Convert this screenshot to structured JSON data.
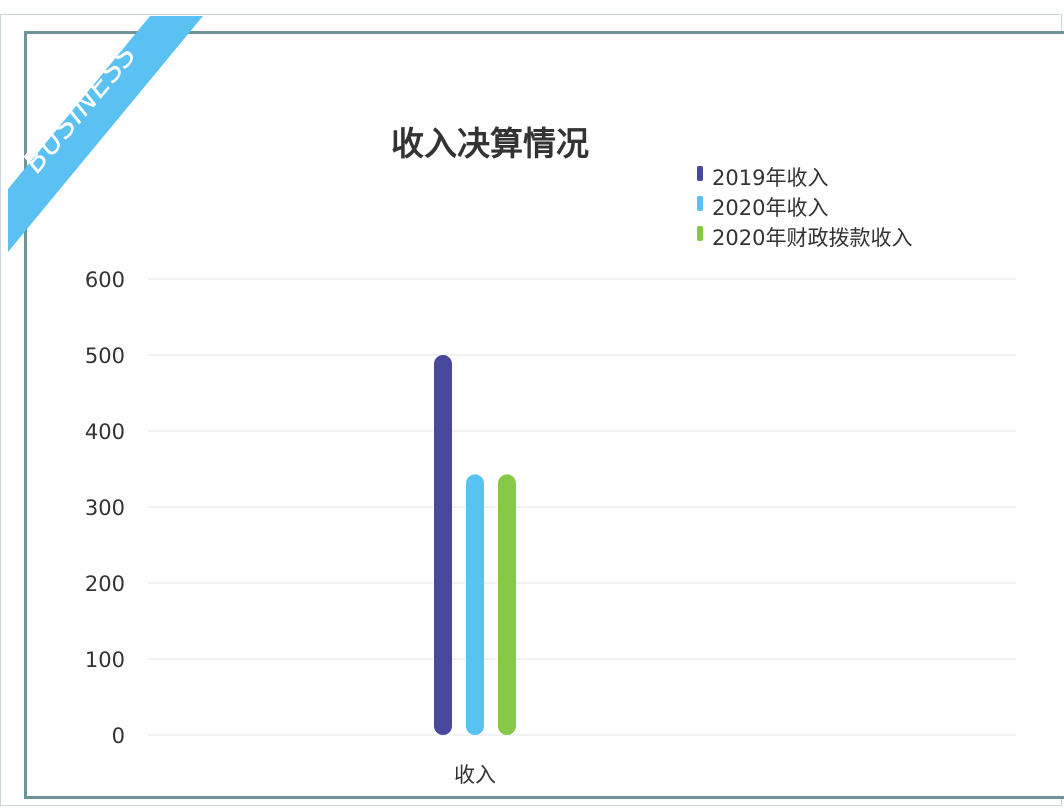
{
  "ribbon": {
    "text": "BUSINESS",
    "color": "#5bc0f2"
  },
  "chart_data": {
    "type": "bar",
    "title": "收入决算情况",
    "categories": [
      "收入"
    ],
    "series": [
      {
        "name": "2019年收入",
        "values": [
          500
        ],
        "color": "#47489e"
      },
      {
        "name": "2020年收入",
        "values": [
          343
        ],
        "color": "#58c2f2"
      },
      {
        "name": "2020年财政拨款收入",
        "values": [
          343
        ],
        "color": "#86c847"
      }
    ],
    "ylim": [
      0,
      600
    ],
    "yticks": [
      0,
      100,
      200,
      300,
      400,
      500,
      600
    ],
    "grid": true,
    "legend": "top-right",
    "xlabel": "",
    "ylabel": ""
  }
}
